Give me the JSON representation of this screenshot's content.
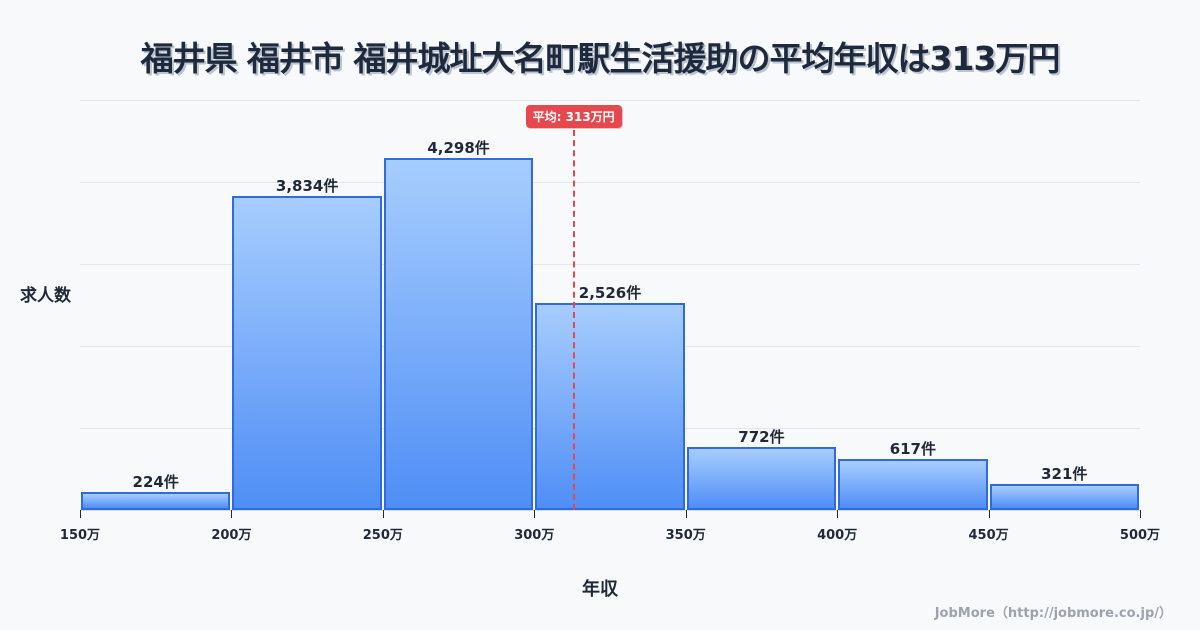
{
  "title": "福井県 福井市 福井城址大名町駅生活援助の平均年収は313万円",
  "axes": {
    "ylabel": "求人数",
    "xlabel": "年収"
  },
  "mean": {
    "label": "平均: 313万円",
    "value": 313,
    "color": "#e5484d"
  },
  "credit": "JobMore（http://jobmore.co.jp/）",
  "colors": {
    "bar_top": "#a7cdfd",
    "bar_bottom": "#4f8ef6",
    "bar_border": "#2f6bdf",
    "mean_line": "#e5484d"
  },
  "chart_data": {
    "type": "bar",
    "title": "福井県 福井市 福井城址大名町駅生活援助の平均年収は313万円",
    "xlabel": "年収",
    "ylabel": "求人数",
    "categories": [
      "150万-200万",
      "200万-250万",
      "250万-300万",
      "300万-350万",
      "350万-400万",
      "400万-450万",
      "450万-500万"
    ],
    "bin_edges": [
      150,
      200,
      250,
      300,
      350,
      400,
      450,
      500
    ],
    "values": [
      224,
      3834,
      4298,
      2526,
      772,
      617,
      321
    ],
    "value_labels": [
      "224件",
      "3,834件",
      "4,298件",
      "2,526件",
      "772件",
      "617件",
      "321件"
    ],
    "x_tick_labels": [
      "150万",
      "200万",
      "250万",
      "300万",
      "350万",
      "400万",
      "450万",
      "500万"
    ],
    "ylim": [
      0,
      5000
    ],
    "grid": true,
    "annotations": [
      {
        "type": "vline",
        "x": 313,
        "label": "平均: 313万円"
      }
    ]
  }
}
